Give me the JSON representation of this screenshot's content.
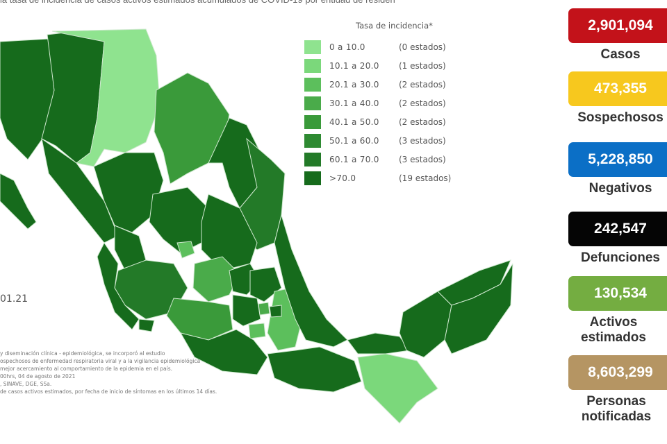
{
  "header": {
    "text": "la tasa de incidencia de casos activos estimados acumulados de COVID-19 por entidad de residen"
  },
  "legend": {
    "title": "Tasa de incidencia*",
    "items": [
      {
        "range": "0  a  10.0",
        "count": "(0 estados)",
        "color": "#8fe38f"
      },
      {
        "range": "10.1 a 20.0",
        "count": "(1 estados)",
        "color": "#7bd87b"
      },
      {
        "range": "20.1 a 30.0",
        "count": "(2 estados)",
        "color": "#5cbf5c"
      },
      {
        "range": "30.1 a 40.0",
        "count": "(2 estados)",
        "color": "#4aab4a"
      },
      {
        "range": "40.1 a 50.0",
        "count": "(2 estados)",
        "color": "#3a9a3a"
      },
      {
        "range": "50.1 a 60.0",
        "count": "(3 estados)",
        "color": "#2e8a32"
      },
      {
        "range": "60.1 a 70.0",
        "count": "(3 estados)",
        "color": "#237a28"
      },
      {
        "range": ">70.0",
        "count": "(19 estados)",
        "color": "#166b1c"
      }
    ]
  },
  "map": {
    "date_fragment": "01.21",
    "footnotes": [
      "y diseminación clínica - epidemiológica, se incorporó al estudio",
      "ospechosos de enfermedad respiratoria viral y a la vigilancia epidemiológica",
      "mejor acercamiento al comportamiento de la epidemia en el país.",
      "00hrs, 04 de agosto de 2021",
      ", SINAVE, DGE, SSa.",
      "de casos activos estimados, por fecha de inicio de síntomas en los últimos 14 días."
    ]
  },
  "stats": [
    {
      "value": "2,901,094",
      "label": "Casos",
      "color": "#c3121a"
    },
    {
      "value": "473,355",
      "label": "Sospechosos",
      "color": "#f7c81e"
    },
    {
      "value": "5,228,850",
      "label": "Negativos",
      "color": "#0b6fc6"
    },
    {
      "value": "242,547",
      "label": "Defunciones",
      "color": "#050505"
    },
    {
      "value": "130,534",
      "label": "Activos estimados",
      "color": "#74ad41"
    },
    {
      "value": "8,603,299",
      "label": "Personas notificadas",
      "color": "#b59563"
    }
  ]
}
